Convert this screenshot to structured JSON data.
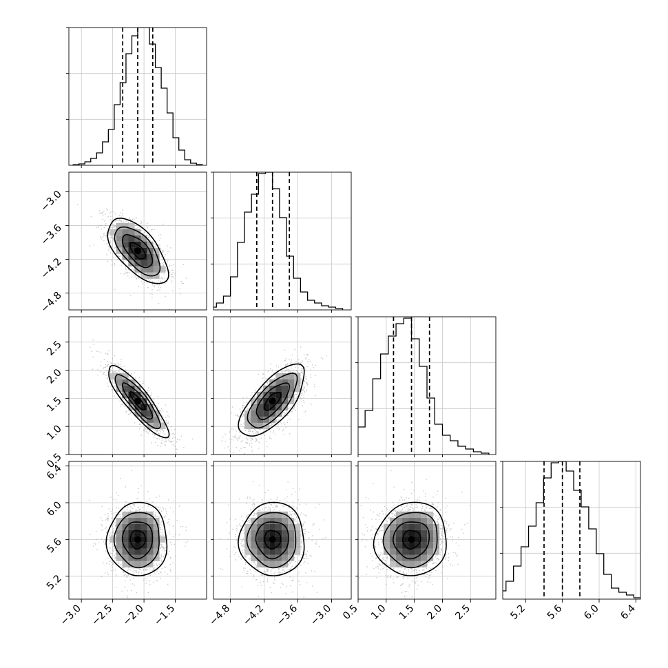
{
  "chart_data": {
    "type": "corner",
    "grid": true,
    "quantiles": [
      0.16,
      0.5,
      0.84
    ],
    "parameters": [
      {
        "median": -2.1,
        "q16": -2.34,
        "q84": -1.86,
        "std": 0.24,
        "range": [
          -3.2,
          -1.0
        ],
        "ticks": [
          -3.0,
          -2.5,
          -2.0,
          -1.5
        ],
        "tick_labels": [
          "−3.0",
          "−2.5",
          "−2.0",
          "−1.5"
        ],
        "hist": [
          0.004,
          0.01,
          0.025,
          0.05,
          0.09,
          0.17,
          0.26,
          0.44,
          0.6,
          0.81,
          0.94,
          1.0,
          1.0,
          0.88,
          0.71,
          0.56,
          0.38,
          0.2,
          0.11,
          0.04,
          0.015,
          0.005
        ]
      },
      {
        "median": -4.05,
        "q16": -4.33,
        "q84": -3.75,
        "std": 0.29,
        "range": [
          -5.1,
          -2.65
        ],
        "ticks": [
          -4.8,
          -4.2,
          -3.6,
          -3.0
        ],
        "tick_labels": [
          "−4.8",
          "−4.2",
          "−3.6",
          "−3.0"
        ],
        "hist": [
          0.01,
          0.02,
          0.05,
          0.1,
          0.24,
          0.49,
          0.71,
          0.84,
          0.99,
          1.0,
          0.88,
          0.67,
          0.39,
          0.23,
          0.13,
          0.07,
          0.05,
          0.03,
          0.02,
          0.01
        ]
      },
      {
        "median": 1.45,
        "q16": 1.13,
        "q84": 1.77,
        "std": 0.32,
        "range": [
          0.5,
          2.95
        ],
        "ticks": [
          0.5,
          1.0,
          1.5,
          2.0,
          2.5
        ],
        "tick_labels": [
          "0.5",
          "1.0",
          "1.5",
          "2.0",
          "2.5"
        ],
        "hist": [
          0.02,
          0.05,
          0.11,
          0.2,
          0.32,
          0.55,
          0.73,
          0.86,
          0.95,
          0.99,
          0.84,
          0.64,
          0.41,
          0.22,
          0.14,
          0.1,
          0.06,
          0.04,
          0.02,
          0.01
        ]
      },
      {
        "median": 5.6,
        "q16": 5.4,
        "q84": 5.79,
        "std": 0.2,
        "range": [
          4.95,
          6.45
        ],
        "ticks": [
          5.2,
          5.6,
          6.0,
          6.4
        ],
        "tick_labels": [
          "5.2",
          "5.6",
          "6.0",
          "6.4"
        ],
        "hist": [
          0.01,
          0.03,
          0.06,
          0.13,
          0.24,
          0.38,
          0.53,
          0.7,
          0.88,
          0.99,
          1.0,
          0.93,
          0.79,
          0.67,
          0.51,
          0.33,
          0.18,
          0.08,
          0.05,
          0.03,
          0.01
        ]
      }
    ],
    "correlations": [
      [
        1,
        -0.62,
        -0.87,
        0.0
      ],
      [
        -0.62,
        1,
        0.7,
        0.0
      ],
      [
        -0.87,
        0.7,
        1,
        0.05
      ],
      [
        0.0,
        0.0,
        0.05,
        1
      ]
    ],
    "contour_levels": [
      0.5,
      1.0,
      1.5,
      2.0
    ]
  }
}
